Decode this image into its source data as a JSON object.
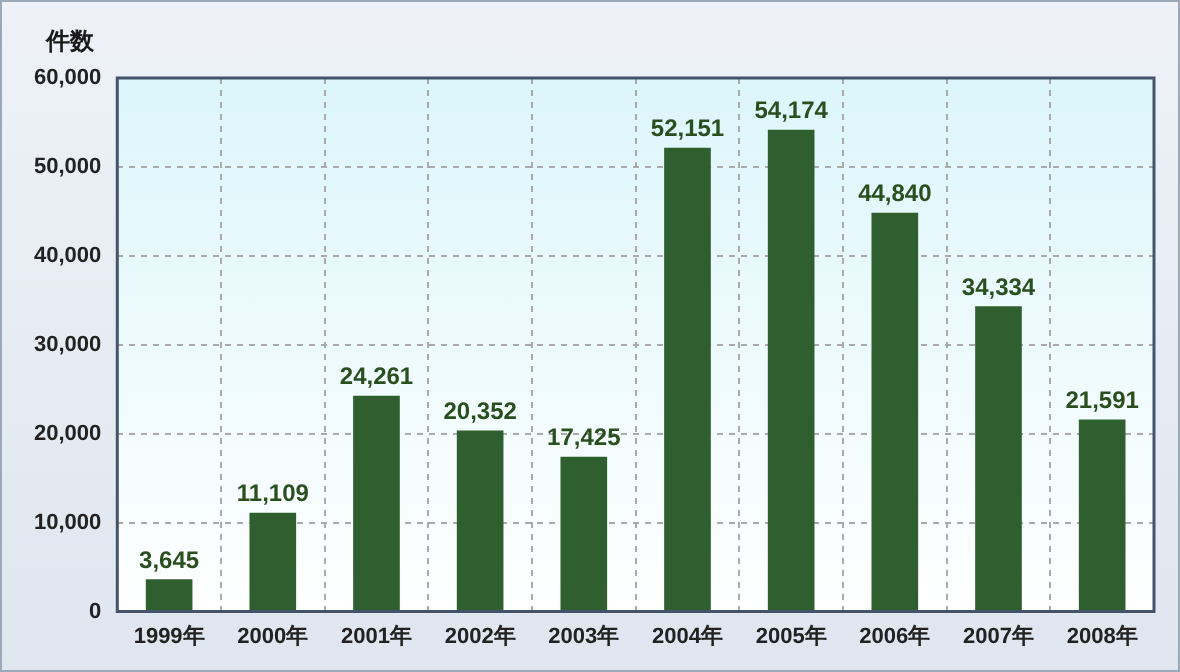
{
  "chart_data": {
    "type": "bar",
    "ylabel": "件数",
    "categories": [
      "1999年",
      "2000年",
      "2001年",
      "2002年",
      "2003年",
      "2004年",
      "2005年",
      "2006年",
      "2007年",
      "2008年"
    ],
    "values": [
      3645,
      11109,
      24261,
      20352,
      17425,
      52151,
      54174,
      44840,
      34334,
      21591
    ],
    "value_labels": [
      "3,645",
      "11,109",
      "24,261",
      "20,352",
      "17,425",
      "52,151",
      "54,174",
      "44,840",
      "34,334",
      "21,591"
    ],
    "color": "#2f5f2f",
    "ylim": [
      0,
      60000
    ],
    "yticks": [
      0,
      {
        "value": 10000,
        "label": "10,000"
      },
      {
        "value": 20000,
        "label": "20,000"
      },
      {
        "value": 30000,
        "label": "30,000"
      },
      {
        "value": 40000,
        "label": "40,000"
      },
      {
        "value": 50000,
        "label": "50,000"
      },
      {
        "value": 60000,
        "label": "60,000"
      }
    ],
    "grid": true
  }
}
